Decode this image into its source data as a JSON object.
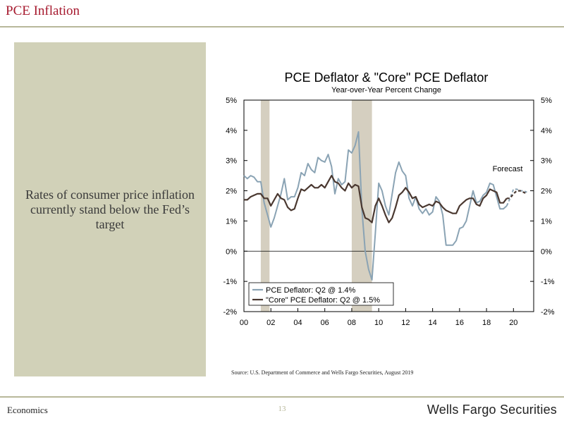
{
  "header": {
    "title": "PCE Inflation"
  },
  "panel": {
    "text": "Rates of consumer price inflation currently stand below the Fed’s target"
  },
  "footer": {
    "left": "Economics",
    "page_number": "13",
    "brand": "Wells Fargo Securities"
  },
  "source": "Source: U.S. Department of Commerce and Wells Fargo Securities, August 2019",
  "colors": {
    "headline": "#a6192e",
    "pce": "#8aa3b4",
    "core": "#4a3830",
    "recession": "#d5cfc0",
    "panel": "#d1d1b8"
  },
  "chart_data": {
    "type": "line",
    "title": "PCE Deflator & \"Core\" PCE Deflator",
    "subtitle": "Year-over-Year Percent Change",
    "annotation": "Forecast",
    "xlim": [
      2000,
      2021.5
    ],
    "ylim": [
      -2,
      5
    ],
    "x_ticks": [
      2000,
      2002,
      2004,
      2006,
      2008,
      2010,
      2012,
      2014,
      2016,
      2018,
      2020
    ],
    "x_tick_labels": [
      "00",
      "02",
      "04",
      "06",
      "08",
      "10",
      "12",
      "14",
      "16",
      "18",
      "20"
    ],
    "y_ticks": [
      -2,
      -1,
      0,
      1,
      2,
      3,
      4,
      5
    ],
    "y_tick_labels": [
      "-2%",
      "-1%",
      "0%",
      "1%",
      "2%",
      "3%",
      "4%",
      "5%"
    ],
    "recessions": [
      [
        2001.25,
        2001.9
      ],
      [
        2008.0,
        2009.5
      ]
    ],
    "forecast_start": 2019.5,
    "legend_placement": "bottom-left",
    "series": [
      {
        "name": "PCE Deflator: Q2 @ 1.4%",
        "x": [
          2000.0,
          2000.25,
          2000.5,
          2000.75,
          2001.0,
          2001.25,
          2001.5,
          2001.75,
          2002.0,
          2002.25,
          2002.5,
          2002.75,
          2003.0,
          2003.25,
          2003.5,
          2003.75,
          2004.0,
          2004.25,
          2004.5,
          2004.75,
          2005.0,
          2005.25,
          2005.5,
          2005.75,
          2006.0,
          2006.25,
          2006.5,
          2006.75,
          2007.0,
          2007.25,
          2007.5,
          2007.75,
          2008.0,
          2008.25,
          2008.5,
          2008.75,
          2009.0,
          2009.25,
          2009.5,
          2009.75,
          2010.0,
          2010.25,
          2010.5,
          2010.75,
          2011.0,
          2011.25,
          2011.5,
          2011.75,
          2012.0,
          2012.25,
          2012.5,
          2012.75,
          2013.0,
          2013.25,
          2013.5,
          2013.75,
          2014.0,
          2014.25,
          2014.5,
          2014.75,
          2015.0,
          2015.25,
          2015.5,
          2015.75,
          2016.0,
          2016.25,
          2016.5,
          2016.75,
          2017.0,
          2017.25,
          2017.5,
          2017.75,
          2018.0,
          2018.25,
          2018.5,
          2018.75,
          2019.0,
          2019.25,
          2019.5,
          2019.75,
          2020.0,
          2020.25,
          2020.5,
          2020.75,
          2021.0
        ],
        "values": [
          2.5,
          2.4,
          2.5,
          2.45,
          2.3,
          2.3,
          1.6,
          1.2,
          0.8,
          1.1,
          1.5,
          1.9,
          2.4,
          1.7,
          1.8,
          1.8,
          2.1,
          2.6,
          2.5,
          2.9,
          2.7,
          2.6,
          3.1,
          3.0,
          2.95,
          3.2,
          2.8,
          1.9,
          2.4,
          2.2,
          2.3,
          3.35,
          3.25,
          3.5,
          3.95,
          1.4,
          0.0,
          -0.6,
          -0.95,
          0.6,
          2.25,
          2.0,
          1.5,
          1.2,
          1.9,
          2.6,
          2.95,
          2.65,
          2.5,
          1.75,
          1.5,
          1.8,
          1.4,
          1.25,
          1.4,
          1.2,
          1.3,
          1.8,
          1.65,
          1.2,
          0.2,
          0.2,
          0.2,
          0.35,
          0.75,
          0.8,
          1.0,
          1.5,
          2.0,
          1.6,
          1.65,
          1.85,
          1.95,
          2.25,
          2.2,
          1.8,
          1.4,
          1.4,
          1.5,
          1.75,
          2.05,
          2.05,
          2.0,
          2.0,
          1.95
        ],
        "color": "#8aa3b4"
      },
      {
        "name": "\"Core\" PCE Deflator: Q2 @ 1.5%",
        "x": [
          2000.0,
          2000.25,
          2000.5,
          2000.75,
          2001.0,
          2001.25,
          2001.5,
          2001.75,
          2002.0,
          2002.25,
          2002.5,
          2002.75,
          2003.0,
          2003.25,
          2003.5,
          2003.75,
          2004.0,
          2004.25,
          2004.5,
          2004.75,
          2005.0,
          2005.25,
          2005.5,
          2005.75,
          2006.0,
          2006.25,
          2006.5,
          2006.75,
          2007.0,
          2007.25,
          2007.5,
          2007.75,
          2008.0,
          2008.25,
          2008.5,
          2008.75,
          2009.0,
          2009.25,
          2009.5,
          2009.75,
          2010.0,
          2010.25,
          2010.5,
          2010.75,
          2011.0,
          2011.25,
          2011.5,
          2011.75,
          2012.0,
          2012.25,
          2012.5,
          2012.75,
          2013.0,
          2013.25,
          2013.5,
          2013.75,
          2014.0,
          2014.25,
          2014.5,
          2014.75,
          2015.0,
          2015.25,
          2015.5,
          2015.75,
          2016.0,
          2016.25,
          2016.5,
          2016.75,
          2017.0,
          2017.25,
          2017.5,
          2017.75,
          2018.0,
          2018.25,
          2018.5,
          2018.75,
          2019.0,
          2019.25,
          2019.5,
          2019.75,
          2020.0,
          2020.25,
          2020.5,
          2020.75,
          2021.0
        ],
        "values": [
          1.7,
          1.7,
          1.8,
          1.85,
          1.9,
          1.9,
          1.75,
          1.75,
          1.5,
          1.7,
          1.9,
          1.75,
          1.7,
          1.45,
          1.35,
          1.4,
          1.75,
          2.05,
          2.0,
          2.1,
          2.2,
          2.1,
          2.1,
          2.2,
          2.1,
          2.3,
          2.5,
          2.3,
          2.25,
          2.1,
          2.0,
          2.25,
          2.1,
          2.2,
          2.15,
          1.45,
          1.1,
          1.05,
          0.95,
          1.5,
          1.75,
          1.5,
          1.2,
          0.95,
          1.1,
          1.45,
          1.85,
          1.95,
          2.1,
          1.95,
          1.75,
          1.8,
          1.55,
          1.45,
          1.5,
          1.55,
          1.5,
          1.65,
          1.6,
          1.45,
          1.35,
          1.3,
          1.25,
          1.25,
          1.5,
          1.6,
          1.7,
          1.75,
          1.75,
          1.55,
          1.5,
          1.75,
          1.85,
          2.05,
          2.0,
          1.95,
          1.6,
          1.6,
          1.75,
          1.75,
          1.9,
          2.0,
          2.0,
          1.95,
          1.9
        ],
        "color": "#4a3830"
      }
    ]
  }
}
